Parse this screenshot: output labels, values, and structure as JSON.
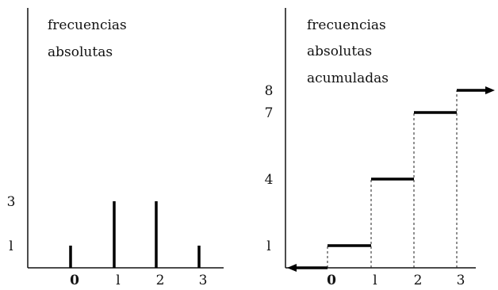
{
  "chart_data": [
    {
      "type": "bar",
      "ylabel_lines": [
        "frecuencias",
        "absolutas"
      ],
      "categories": [
        "0",
        "1",
        "2",
        "3"
      ],
      "category_tick_labels": [
        "0",
        "l",
        "2",
        "3"
      ],
      "values": [
        1,
        3,
        3,
        1
      ],
      "yticks": [
        1,
        3
      ],
      "ytick_labels": [
        "l",
        "3"
      ],
      "ylim": [
        0,
        9.5
      ],
      "grid": false,
      "style": "spike",
      "color": "#000000"
    },
    {
      "type": "line",
      "style": "step",
      "ylabel_lines": [
        "frecuencias",
        "absolutas",
        "acumuladas"
      ],
      "x": [
        0,
        1,
        2,
        3
      ],
      "x_tick_labels": [
        "0",
        "l",
        "2",
        "3"
      ],
      "values": [
        1,
        4,
        7,
        8
      ],
      "yticks": [
        1,
        4,
        7,
        8
      ],
      "ytick_labels": [
        "l",
        "4",
        "7",
        "8"
      ],
      "ylim": [
        0,
        9.5
      ],
      "grid": false,
      "left_arrow": true,
      "right_arrow": true,
      "color": "#000000"
    }
  ]
}
